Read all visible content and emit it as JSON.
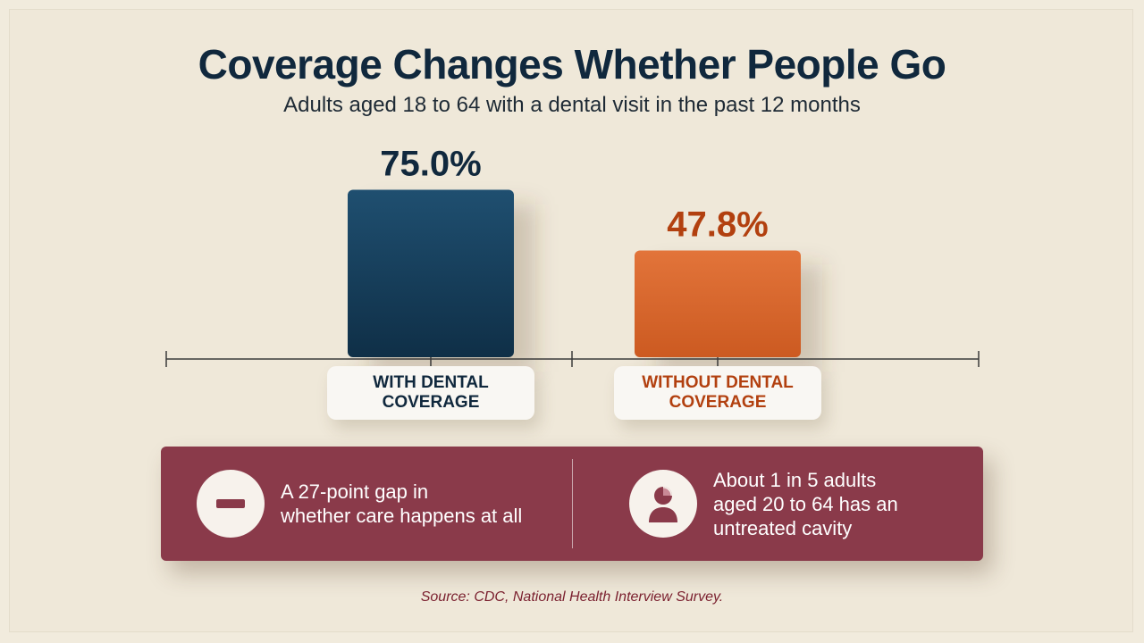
{
  "title": "Coverage Changes Whether People Go",
  "subtitle": "Adults aged 18 to 64 with a dental visit in the past 12 months",
  "chart_data": {
    "type": "bar",
    "categories": [
      "WITH DENTAL\nCOVERAGE",
      "WITHOUT DENTAL\nCOVERAGE"
    ],
    "values": [
      75.0,
      47.8
    ],
    "value_labels": [
      "75.0%",
      "47.8%"
    ],
    "colors": [
      "#123a57",
      "#d8632a"
    ],
    "label_colors": [
      "#10283d",
      "#b2400f"
    ],
    "ylim": [
      0,
      100
    ],
    "title": "Coverage Changes Whether People Go",
    "subtitle": "Adults aged 18 to 64 with a dental visit in the past 12 months",
    "xlabel": "",
    "ylabel": "",
    "grid": false
  },
  "callout": {
    "items": [
      {
        "icon": "minus-icon",
        "text": "A 27-point gap in\nwhether care happens at all"
      },
      {
        "icon": "person-pie-chart-icon",
        "text": "About 1 in 5 adults\naged 20 to 64 has an\nuntreated cavity"
      }
    ],
    "background": "#8a3a4a"
  },
  "source": "Source: CDC, National Health Interview Survey."
}
